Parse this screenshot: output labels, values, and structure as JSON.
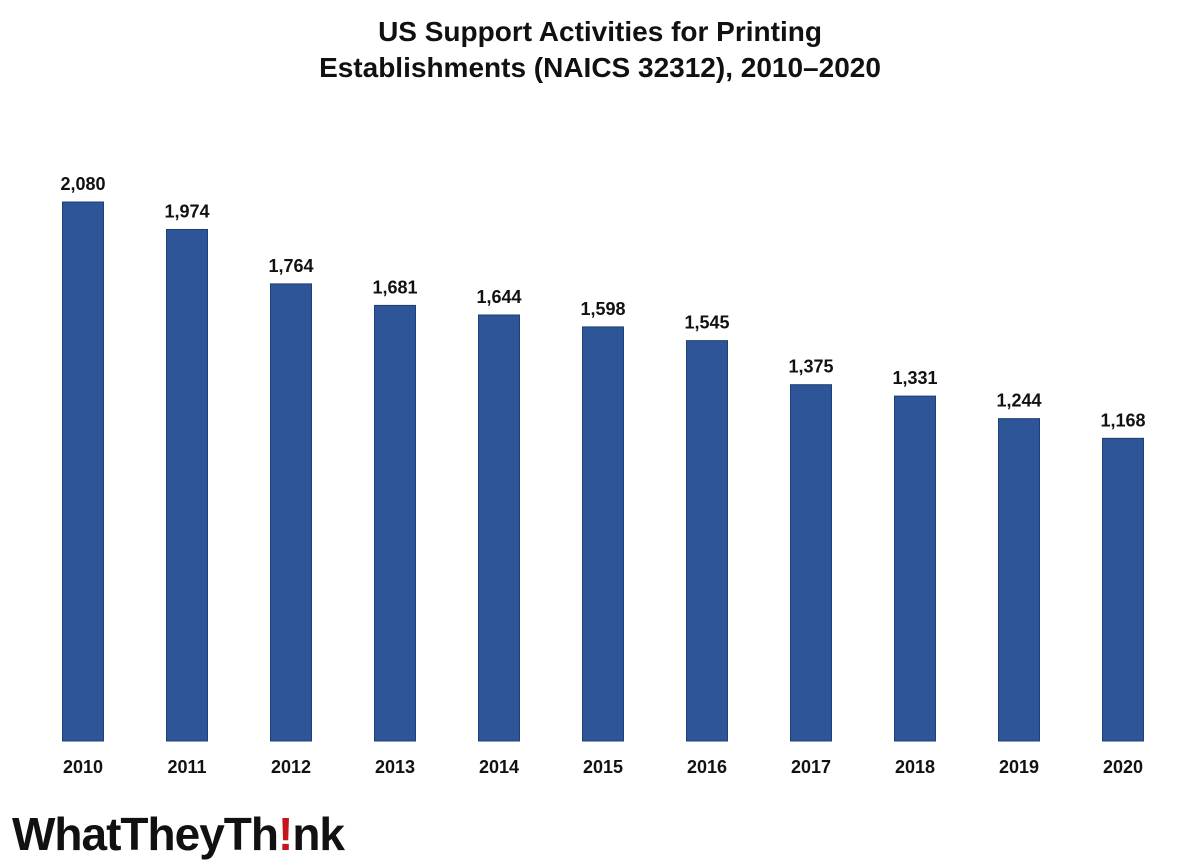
{
  "chart_data": {
    "type": "bar",
    "title": [
      "US Support Activities for Printing",
      "Establishments (NAICS 32312), 2010–2020"
    ],
    "categories": [
      "2010",
      "2011",
      "2012",
      "2013",
      "2014",
      "2015",
      "2016",
      "2017",
      "2018",
      "2019",
      "2020"
    ],
    "values": [
      2080,
      1974,
      1764,
      1681,
      1644,
      1598,
      1545,
      1375,
      1331,
      1244,
      1168
    ],
    "value_labels": [
      "2,080",
      "1,974",
      "1,764",
      "1,681",
      "1,644",
      "1,598",
      "1,545",
      "1,375",
      "1,331",
      "1,244",
      "1,168"
    ],
    "xlabel": "",
    "ylabel": "",
    "ylim": [
      0,
      2080
    ],
    "grid": false,
    "legend": "none",
    "colors": {
      "bar": "#2e5597",
      "text": "#111111"
    }
  },
  "logo": {
    "text_before": "WhatTheyTh",
    "mark": "!",
    "text_after": "nk",
    "mark_color": "#c4161c"
  }
}
